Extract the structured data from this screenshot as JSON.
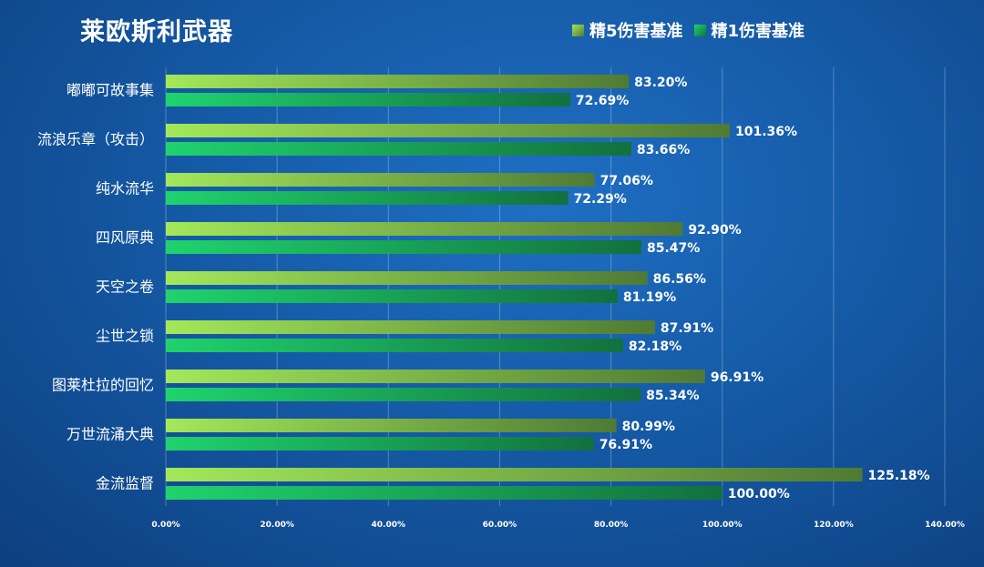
{
  "chart_data": {
    "type": "bar",
    "orientation": "horizontal",
    "title": "莱欧斯利武器",
    "categories": [
      "嘟嘟可故事集",
      "流浪乐章（攻击）",
      "纯水流华",
      "四风原典",
      "天空之卷",
      "尘世之锁",
      "图莱杜拉的回忆",
      "万世流涌大典",
      "金流监督"
    ],
    "series": [
      {
        "name": "精5伤害基准",
        "values": [
          83.2,
          101.36,
          77.06,
          92.9,
          86.56,
          87.91,
          96.91,
          80.99,
          125.18
        ],
        "labels": [
          "83.20%",
          "101.36%",
          "77.06%",
          "92.90%",
          "86.56%",
          "87.91%",
          "96.91%",
          "80.99%",
          "125.18%"
        ],
        "color": "#8ccf4a",
        "gradient": [
          "#a3e85a",
          "#4f7a34"
        ]
      },
      {
        "name": "精1伤害基准",
        "values": [
          72.69,
          83.66,
          72.29,
          85.47,
          81.19,
          82.18,
          85.34,
          76.91,
          100.0
        ],
        "labels": [
          "72.69%",
          "83.66%",
          "72.29%",
          "85.47%",
          "81.19%",
          "82.18%",
          "85.34%",
          "76.91%",
          "100.00%"
        ],
        "color": "#1ec46a",
        "gradient": [
          "#1fd36e",
          "#12703d"
        ]
      }
    ],
    "xlim": [
      0,
      140
    ],
    "xticks": [
      0,
      20,
      40,
      60,
      80,
      100,
      120,
      140
    ],
    "xtick_labels": [
      "0.00%",
      "20.00%",
      "40.00%",
      "60.00%",
      "80.00%",
      "100.00%",
      "120.00%",
      "140.00%"
    ],
    "grid": true,
    "legend_position": "top-right"
  }
}
